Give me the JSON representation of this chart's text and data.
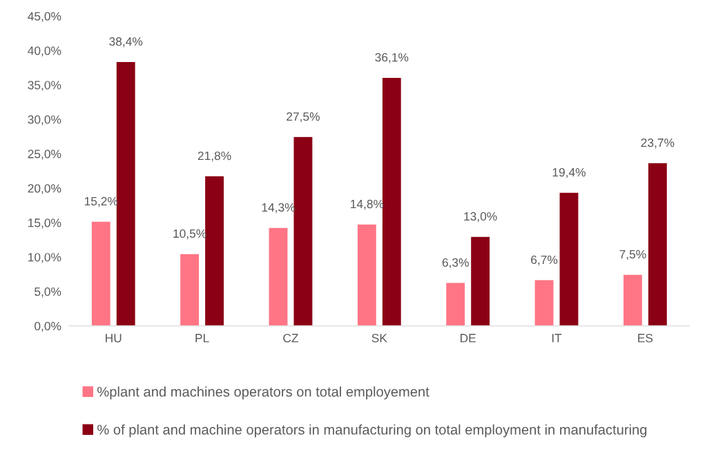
{
  "chart_data": {
    "type": "bar",
    "categories": [
      "HU",
      "PL",
      "CZ",
      "SK",
      "DE",
      "IT",
      "ES"
    ],
    "series": [
      {
        "name": "%plant and machines operators on total employement",
        "color": "#ff7585",
        "values": [
          15.2,
          10.5,
          14.3,
          14.8,
          6.3,
          6.7,
          7.5
        ],
        "value_labels": [
          "15,2%",
          "10,5%",
          "14,3%",
          "14,8%",
          "6,3%",
          "6,7%",
          "7,5%"
        ]
      },
      {
        "name": "% of plant and machine operators in manufacturing on total employment in manufacturing",
        "color": "#8b0014",
        "values": [
          38.4,
          21.8,
          27.5,
          36.1,
          13.0,
          19.4,
          23.7
        ],
        "value_labels": [
          "38,4%",
          "21,8%",
          "27,5%",
          "36,1%",
          "13,0%",
          "19,4%",
          "23,7%"
        ]
      }
    ],
    "ylim": [
      0,
      45
    ],
    "yticks": [
      {
        "value": 0,
        "label": "0,0%"
      },
      {
        "value": 5,
        "label": "5,0%"
      },
      {
        "value": 10,
        "label": "10,0%"
      },
      {
        "value": 15,
        "label": "15,0%"
      },
      {
        "value": 20,
        "label": "20,0%"
      },
      {
        "value": 25,
        "label": "25,0%"
      },
      {
        "value": 30,
        "label": "30,0%"
      },
      {
        "value": 35,
        "label": "35,0%"
      },
      {
        "value": 40,
        "label": "40,0%"
      },
      {
        "value": 45,
        "label": "45,0%"
      }
    ],
    "grid": false,
    "legend": "bottom"
  }
}
